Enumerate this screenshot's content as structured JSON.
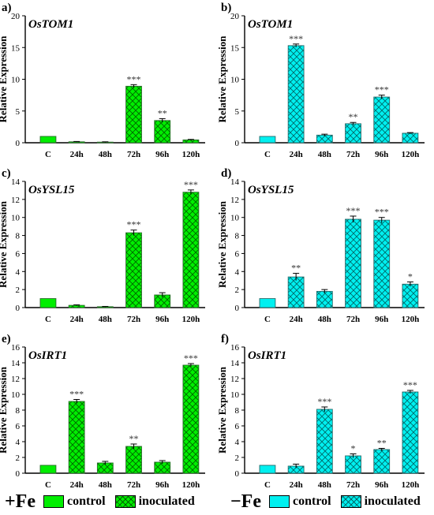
{
  "colors": {
    "plusfe_control": "#00ee00",
    "plusfe_inoculated": "#33dd33",
    "minusfe_control": "#00f0f0",
    "minusfe_inoculated": "#66e8e8",
    "text": "#000000"
  },
  "legend": {
    "plus_fe": {
      "condition": "+Fe",
      "control_label": "control",
      "inoculated_label": "inoculated"
    },
    "minus_fe": {
      "condition": "−Fe",
      "control_label": "control",
      "inoculated_label": "inoculated"
    }
  },
  "chart_data": [
    {
      "type": "bar",
      "panel": "a)",
      "gene": "OsTOM1",
      "ylabel": "Relative Expression",
      "categories": [
        "C",
        "24h",
        "48h",
        "72h",
        "96h",
        "120h"
      ],
      "values": [
        1.0,
        0.15,
        0.1,
        8.9,
        3.5,
        0.45
      ],
      "errors": [
        0.0,
        0.05,
        0.05,
        0.25,
        0.3,
        0.08
      ],
      "significance": [
        "",
        "",
        "",
        "***",
        "**",
        ""
      ],
      "ylim": [
        0,
        20
      ],
      "yticks": [
        0,
        5,
        10,
        15,
        20
      ],
      "grid": false,
      "condition": "+Fe"
    },
    {
      "type": "bar",
      "panel": "b)",
      "gene": "OsTOM1",
      "ylabel": "Relative Expression",
      "categories": [
        "C",
        "24h",
        "48h",
        "72h",
        "96h",
        "120h"
      ],
      "values": [
        1.0,
        15.3,
        1.2,
        3.0,
        7.2,
        1.5
      ],
      "errors": [
        0.0,
        0.25,
        0.15,
        0.2,
        0.3,
        0.1
      ],
      "significance": [
        "",
        "***",
        "",
        "**",
        "***",
        ""
      ],
      "ylim": [
        0,
        20
      ],
      "yticks": [
        0,
        5,
        10,
        15,
        20
      ],
      "grid": false,
      "condition": "−Fe"
    },
    {
      "type": "bar",
      "panel": "c)",
      "gene": "OsYSL15",
      "ylabel": "Relative Expression",
      "categories": [
        "C",
        "24h",
        "48h",
        "72h",
        "96h",
        "120h"
      ],
      "values": [
        1.0,
        0.25,
        0.1,
        8.3,
        1.4,
        12.8
      ],
      "errors": [
        0.0,
        0.05,
        0.03,
        0.3,
        0.25,
        0.25
      ],
      "significance": [
        "",
        "",
        "",
        "***",
        "",
        "***"
      ],
      "ylim": [
        0,
        14
      ],
      "yticks": [
        0,
        2,
        4,
        6,
        8,
        10,
        12,
        14
      ],
      "grid": false,
      "condition": "+Fe"
    },
    {
      "type": "bar",
      "panel": "d)",
      "gene": "OsYSL15",
      "ylabel": "Relative Expression",
      "categories": [
        "C",
        "24h",
        "48h",
        "72h",
        "96h",
        "120h"
      ],
      "values": [
        1.0,
        3.4,
        1.8,
        9.8,
        9.7,
        2.6
      ],
      "errors": [
        0.0,
        0.4,
        0.2,
        0.35,
        0.3,
        0.25
      ],
      "significance": [
        "",
        "**",
        "",
        "***",
        "***",
        "*"
      ],
      "ylim": [
        0,
        14
      ],
      "yticks": [
        0,
        2,
        4,
        6,
        8,
        10,
        12,
        14
      ],
      "grid": false,
      "condition": "−Fe"
    },
    {
      "type": "bar",
      "panel": "e)",
      "gene": "OsIRT1",
      "ylabel": "Relative Expression",
      "categories": [
        "C",
        "24h",
        "48h",
        "72h",
        "96h",
        "120h"
      ],
      "values": [
        1.0,
        9.1,
        1.3,
        3.4,
        1.4,
        13.7
      ],
      "errors": [
        0.0,
        0.25,
        0.2,
        0.3,
        0.2,
        0.2
      ],
      "significance": [
        "",
        "***",
        "",
        "**",
        "",
        "***"
      ],
      "ylim": [
        0,
        16
      ],
      "yticks": [
        0,
        2,
        4,
        6,
        8,
        10,
        12,
        14,
        16
      ],
      "grid": false,
      "condition": "+Fe"
    },
    {
      "type": "bar",
      "panel": "f)",
      "gene": "OsIRT1",
      "ylabel": "Relative Expression",
      "categories": [
        "C",
        "24h",
        "48h",
        "72h",
        "96h",
        "120h"
      ],
      "values": [
        1.0,
        0.9,
        8.1,
        2.2,
        3.0,
        10.3
      ],
      "errors": [
        0.0,
        0.25,
        0.3,
        0.25,
        0.15,
        0.2
      ],
      "significance": [
        "",
        "",
        "***",
        "*",
        "**",
        "***"
      ],
      "ylim": [
        0,
        16
      ],
      "yticks": [
        0,
        2,
        4,
        6,
        8,
        10,
        12,
        14,
        16
      ],
      "grid": false,
      "condition": "−Fe"
    }
  ]
}
